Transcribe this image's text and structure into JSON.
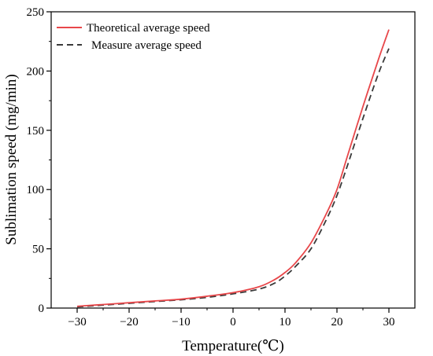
{
  "chart_data": {
    "type": "line",
    "title": "",
    "xlabel": "Temperature(℃)",
    "ylabel": "Sublimation speed (mg/min)",
    "xlim": [
      -35,
      35
    ],
    "ylim": [
      0,
      250
    ],
    "xticks": [
      -30,
      -20,
      -10,
      0,
      10,
      20,
      30
    ],
    "yticks": [
      0,
      50,
      100,
      150,
      200,
      250
    ],
    "grid": false,
    "legend_position": "top-left",
    "series": [
      {
        "name": "Theoretical average speed",
        "color": "#e8474a",
        "dash": "solid",
        "x": [
          -30,
          -25,
          -20,
          -15,
          -10,
          -5,
          0,
          5,
          8,
          10,
          12,
          15,
          18,
          20,
          22,
          25,
          28,
          30
        ],
        "y": [
          1.5,
          3,
          4.5,
          6,
          7.5,
          10,
          13,
          18,
          24,
          30,
          38,
          55,
          80,
          100,
          128,
          170,
          210,
          235
        ]
      },
      {
        "name": "Measure average speed",
        "color": "#3a3a3a",
        "dash": "dashed",
        "x": [
          -30,
          -25,
          -20,
          -15,
          -10,
          -5,
          0,
          5,
          8,
          10,
          12,
          15,
          18,
          20,
          22,
          25,
          28,
          30
        ],
        "y": [
          1,
          2.5,
          4,
          5.5,
          7,
          9,
          12,
          16,
          21,
          27,
          35,
          50,
          75,
          95,
          120,
          160,
          198,
          219
        ]
      }
    ]
  }
}
